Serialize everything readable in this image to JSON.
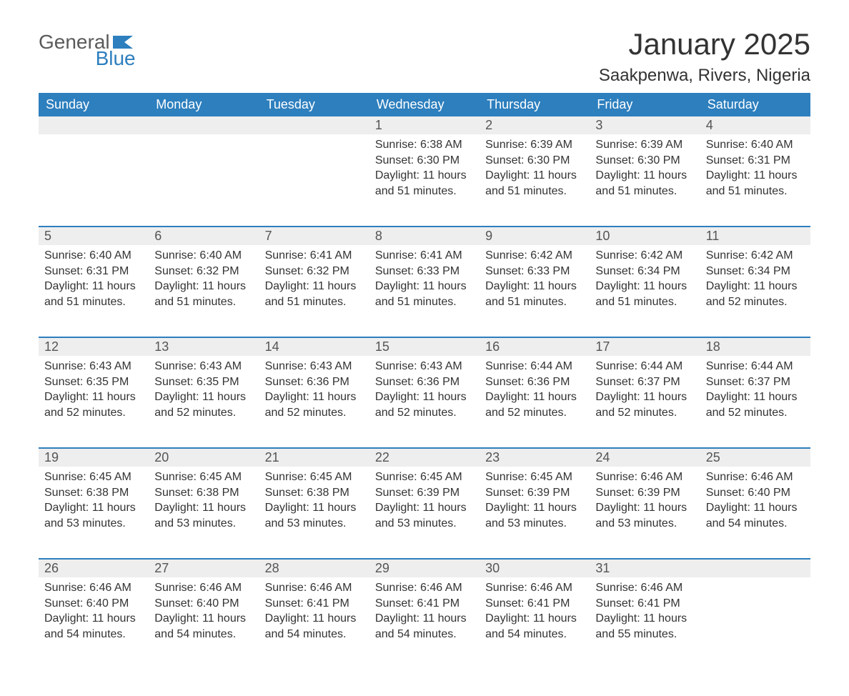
{
  "brand": {
    "general": "General",
    "blue": "Blue"
  },
  "title": "January 2025",
  "location": "Saakpenwa, Rivers, Nigeria",
  "colors": {
    "header_bg": "#2d7fbe",
    "header_fg": "#ffffff",
    "daynum_bg": "#eeeeee",
    "daynum_fg": "#555555",
    "border": "#2d7fbe",
    "text": "#333333",
    "page_bg": "#ffffff"
  },
  "typography": {
    "title_fontsize": 42,
    "location_fontsize": 24,
    "header_fontsize": 18,
    "daynum_fontsize": 18,
    "details_fontsize": 16
  },
  "day_labels": [
    "Sunday",
    "Monday",
    "Tuesday",
    "Wednesday",
    "Thursday",
    "Friday",
    "Saturday"
  ],
  "weeks": [
    [
      null,
      null,
      null,
      {
        "n": "1",
        "sunrise": "Sunrise: 6:38 AM",
        "sunset": "Sunset: 6:30 PM",
        "dl1": "Daylight: 11 hours",
        "dl2": "and 51 minutes."
      },
      {
        "n": "2",
        "sunrise": "Sunrise: 6:39 AM",
        "sunset": "Sunset: 6:30 PM",
        "dl1": "Daylight: 11 hours",
        "dl2": "and 51 minutes."
      },
      {
        "n": "3",
        "sunrise": "Sunrise: 6:39 AM",
        "sunset": "Sunset: 6:30 PM",
        "dl1": "Daylight: 11 hours",
        "dl2": "and 51 minutes."
      },
      {
        "n": "4",
        "sunrise": "Sunrise: 6:40 AM",
        "sunset": "Sunset: 6:31 PM",
        "dl1": "Daylight: 11 hours",
        "dl2": "and 51 minutes."
      }
    ],
    [
      {
        "n": "5",
        "sunrise": "Sunrise: 6:40 AM",
        "sunset": "Sunset: 6:31 PM",
        "dl1": "Daylight: 11 hours",
        "dl2": "and 51 minutes."
      },
      {
        "n": "6",
        "sunrise": "Sunrise: 6:40 AM",
        "sunset": "Sunset: 6:32 PM",
        "dl1": "Daylight: 11 hours",
        "dl2": "and 51 minutes."
      },
      {
        "n": "7",
        "sunrise": "Sunrise: 6:41 AM",
        "sunset": "Sunset: 6:32 PM",
        "dl1": "Daylight: 11 hours",
        "dl2": "and 51 minutes."
      },
      {
        "n": "8",
        "sunrise": "Sunrise: 6:41 AM",
        "sunset": "Sunset: 6:33 PM",
        "dl1": "Daylight: 11 hours",
        "dl2": "and 51 minutes."
      },
      {
        "n": "9",
        "sunrise": "Sunrise: 6:42 AM",
        "sunset": "Sunset: 6:33 PM",
        "dl1": "Daylight: 11 hours",
        "dl2": "and 51 minutes."
      },
      {
        "n": "10",
        "sunrise": "Sunrise: 6:42 AM",
        "sunset": "Sunset: 6:34 PM",
        "dl1": "Daylight: 11 hours",
        "dl2": "and 51 minutes."
      },
      {
        "n": "11",
        "sunrise": "Sunrise: 6:42 AM",
        "sunset": "Sunset: 6:34 PM",
        "dl1": "Daylight: 11 hours",
        "dl2": "and 52 minutes."
      }
    ],
    [
      {
        "n": "12",
        "sunrise": "Sunrise: 6:43 AM",
        "sunset": "Sunset: 6:35 PM",
        "dl1": "Daylight: 11 hours",
        "dl2": "and 52 minutes."
      },
      {
        "n": "13",
        "sunrise": "Sunrise: 6:43 AM",
        "sunset": "Sunset: 6:35 PM",
        "dl1": "Daylight: 11 hours",
        "dl2": "and 52 minutes."
      },
      {
        "n": "14",
        "sunrise": "Sunrise: 6:43 AM",
        "sunset": "Sunset: 6:36 PM",
        "dl1": "Daylight: 11 hours",
        "dl2": "and 52 minutes."
      },
      {
        "n": "15",
        "sunrise": "Sunrise: 6:43 AM",
        "sunset": "Sunset: 6:36 PM",
        "dl1": "Daylight: 11 hours",
        "dl2": "and 52 minutes."
      },
      {
        "n": "16",
        "sunrise": "Sunrise: 6:44 AM",
        "sunset": "Sunset: 6:36 PM",
        "dl1": "Daylight: 11 hours",
        "dl2": "and 52 minutes."
      },
      {
        "n": "17",
        "sunrise": "Sunrise: 6:44 AM",
        "sunset": "Sunset: 6:37 PM",
        "dl1": "Daylight: 11 hours",
        "dl2": "and 52 minutes."
      },
      {
        "n": "18",
        "sunrise": "Sunrise: 6:44 AM",
        "sunset": "Sunset: 6:37 PM",
        "dl1": "Daylight: 11 hours",
        "dl2": "and 52 minutes."
      }
    ],
    [
      {
        "n": "19",
        "sunrise": "Sunrise: 6:45 AM",
        "sunset": "Sunset: 6:38 PM",
        "dl1": "Daylight: 11 hours",
        "dl2": "and 53 minutes."
      },
      {
        "n": "20",
        "sunrise": "Sunrise: 6:45 AM",
        "sunset": "Sunset: 6:38 PM",
        "dl1": "Daylight: 11 hours",
        "dl2": "and 53 minutes."
      },
      {
        "n": "21",
        "sunrise": "Sunrise: 6:45 AM",
        "sunset": "Sunset: 6:38 PM",
        "dl1": "Daylight: 11 hours",
        "dl2": "and 53 minutes."
      },
      {
        "n": "22",
        "sunrise": "Sunrise: 6:45 AM",
        "sunset": "Sunset: 6:39 PM",
        "dl1": "Daylight: 11 hours",
        "dl2": "and 53 minutes."
      },
      {
        "n": "23",
        "sunrise": "Sunrise: 6:45 AM",
        "sunset": "Sunset: 6:39 PM",
        "dl1": "Daylight: 11 hours",
        "dl2": "and 53 minutes."
      },
      {
        "n": "24",
        "sunrise": "Sunrise: 6:46 AM",
        "sunset": "Sunset: 6:39 PM",
        "dl1": "Daylight: 11 hours",
        "dl2": "and 53 minutes."
      },
      {
        "n": "25",
        "sunrise": "Sunrise: 6:46 AM",
        "sunset": "Sunset: 6:40 PM",
        "dl1": "Daylight: 11 hours",
        "dl2": "and 54 minutes."
      }
    ],
    [
      {
        "n": "26",
        "sunrise": "Sunrise: 6:46 AM",
        "sunset": "Sunset: 6:40 PM",
        "dl1": "Daylight: 11 hours",
        "dl2": "and 54 minutes."
      },
      {
        "n": "27",
        "sunrise": "Sunrise: 6:46 AM",
        "sunset": "Sunset: 6:40 PM",
        "dl1": "Daylight: 11 hours",
        "dl2": "and 54 minutes."
      },
      {
        "n": "28",
        "sunrise": "Sunrise: 6:46 AM",
        "sunset": "Sunset: 6:41 PM",
        "dl1": "Daylight: 11 hours",
        "dl2": "and 54 minutes."
      },
      {
        "n": "29",
        "sunrise": "Sunrise: 6:46 AM",
        "sunset": "Sunset: 6:41 PM",
        "dl1": "Daylight: 11 hours",
        "dl2": "and 54 minutes."
      },
      {
        "n": "30",
        "sunrise": "Sunrise: 6:46 AM",
        "sunset": "Sunset: 6:41 PM",
        "dl1": "Daylight: 11 hours",
        "dl2": "and 54 minutes."
      },
      {
        "n": "31",
        "sunrise": "Sunrise: 6:46 AM",
        "sunset": "Sunset: 6:41 PM",
        "dl1": "Daylight: 11 hours",
        "dl2": "and 55 minutes."
      },
      null
    ]
  ]
}
